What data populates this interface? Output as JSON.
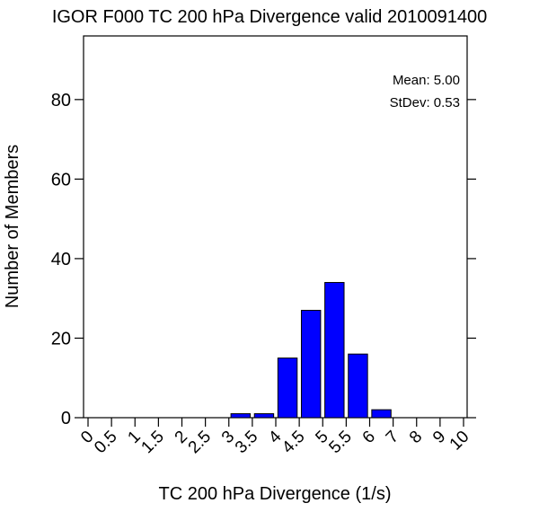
{
  "chart_data": {
    "type": "bar",
    "title": "IGOR F000 TC 200 hPa Divergence valid 2010091400",
    "xlabel": "TC 200 hPa Divergence (1/s)",
    "ylabel": "Number of Members",
    "x_tick_labels": [
      "0",
      "0.5",
      "1",
      "1.5",
      "2",
      "2.5",
      "3",
      "3.5",
      "4",
      "4.5",
      "5",
      "5.5",
      "6",
      "7",
      "8",
      "9",
      "10"
    ],
    "y_ticks": [
      0,
      20,
      40,
      60,
      80
    ],
    "ylim": [
      0,
      96
    ],
    "bin_edges": [
      "3",
      "3.5",
      "4",
      "4.5",
      "5",
      "5.5",
      "6",
      "7"
    ],
    "bins": [
      {
        "from": "3",
        "to": "3.5",
        "value": 1
      },
      {
        "from": "3.5",
        "to": "4",
        "value": 1
      },
      {
        "from": "4",
        "to": "4.5",
        "value": 15
      },
      {
        "from": "4.5",
        "to": "5",
        "value": 27
      },
      {
        "from": "5",
        "to": "5.5",
        "value": 34
      },
      {
        "from": "5.5",
        "to": "6",
        "value": 16
      },
      {
        "from": "6",
        "to": "7",
        "value": 2
      }
    ],
    "bar_color": "#0000ff",
    "stats": {
      "mean_label": "Mean: 5.00",
      "stdev_label": "StDev: 0.53"
    },
    "grid": false
  }
}
